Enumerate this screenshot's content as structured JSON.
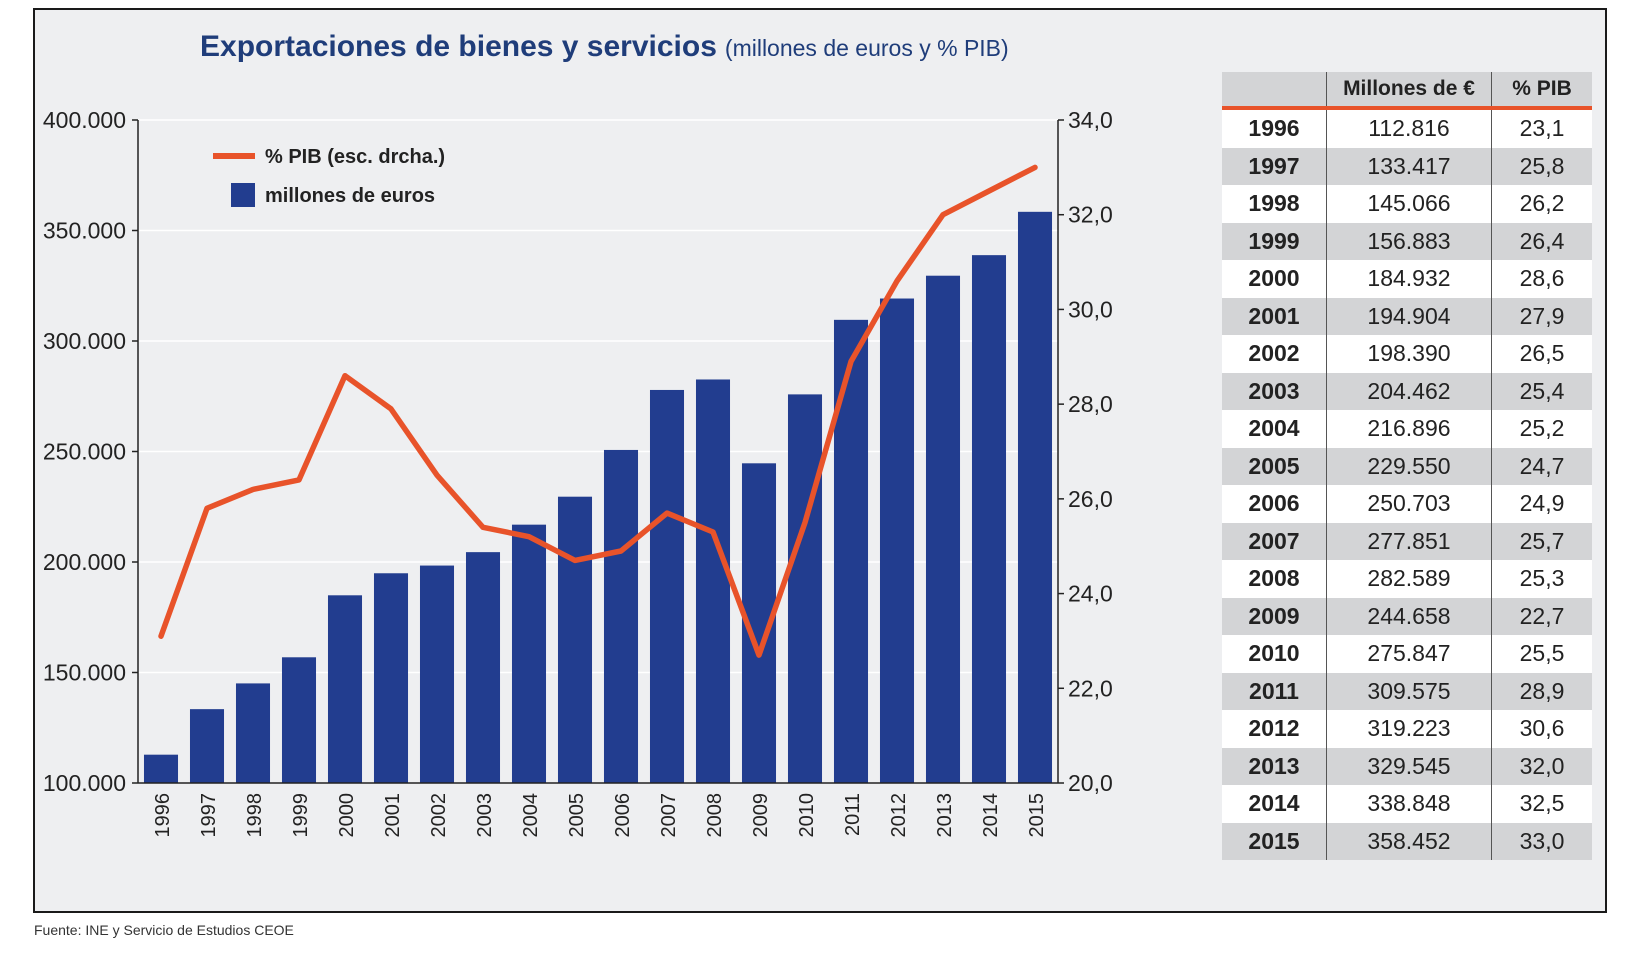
{
  "title": "Exportaciones de bienes y servicios",
  "subtitle": "(millones de euros y % PIB)",
  "footer": "Fuente: INE y Servicio de Estudios CEOE",
  "legend": {
    "line_label": "% PIB (esc. drcha.)",
    "bar_label": "millones de euros"
  },
  "colors": {
    "bar": "#223d8f",
    "line": "#e8532a",
    "title": "#1f3d7a"
  },
  "table": {
    "headers": [
      "",
      "Millones de €",
      "% PIB"
    ],
    "rows": [
      [
        "1996",
        "112.816",
        "23,1"
      ],
      [
        "1997",
        "133.417",
        "25,8"
      ],
      [
        "1998",
        "145.066",
        "26,2"
      ],
      [
        "1999",
        "156.883",
        "26,4"
      ],
      [
        "2000",
        "184.932",
        "28,6"
      ],
      [
        "2001",
        "194.904",
        "27,9"
      ],
      [
        "2002",
        "198.390",
        "26,5"
      ],
      [
        "2003",
        "204.462",
        "25,4"
      ],
      [
        "2004",
        "216.896",
        "25,2"
      ],
      [
        "2005",
        "229.550",
        "24,7"
      ],
      [
        "2006",
        "250.703",
        "24,9"
      ],
      [
        "2007",
        "277.851",
        "25,7"
      ],
      [
        "2008",
        "282.589",
        "25,3"
      ],
      [
        "2009",
        "244.658",
        "22,7"
      ],
      [
        "2010",
        "275.847",
        "25,5"
      ],
      [
        "2011",
        "309.575",
        "28,9"
      ],
      [
        "2012",
        "319.223",
        "30,6"
      ],
      [
        "2013",
        "329.545",
        "32,0"
      ],
      [
        "2014",
        "338.848",
        "32,5"
      ],
      [
        "2015",
        "358.452",
        "33,0"
      ]
    ]
  },
  "chart_data": {
    "type": "bar",
    "title": "Exportaciones de bienes y servicios",
    "categories": [
      "1996",
      "1997",
      "1998",
      "1999",
      "2000",
      "2001",
      "2002",
      "2003",
      "2004",
      "2005",
      "2006",
      "2007",
      "2008",
      "2009",
      "2010",
      "2011",
      "2012",
      "2013",
      "2014",
      "2015"
    ],
    "series": [
      {
        "name": "millones de euros",
        "type": "bar",
        "axis": "left",
        "values": [
          112816,
          133417,
          145066,
          156883,
          184932,
          194904,
          198390,
          204462,
          216896,
          229550,
          250703,
          277851,
          282589,
          244658,
          275847,
          309575,
          319223,
          329545,
          338848,
          358452
        ]
      },
      {
        "name": "% PIB (esc. drcha.)",
        "type": "line",
        "axis": "right",
        "values": [
          23.1,
          25.8,
          26.2,
          26.4,
          28.6,
          27.9,
          26.5,
          25.4,
          25.2,
          24.7,
          24.9,
          25.7,
          25.3,
          22.7,
          25.5,
          28.9,
          30.6,
          32.0,
          32.5,
          33.0
        ]
      }
    ],
    "ylim_left": [
      100000,
      400000
    ],
    "yticks_left": [
      "100.000",
      "150.000",
      "200.000",
      "250.000",
      "300.000",
      "350.000",
      "400.000"
    ],
    "ylim_right": [
      20,
      34
    ],
    "yticks_right": [
      "20,0",
      "22,0",
      "24,0",
      "26,0",
      "28,0",
      "30,0",
      "32,0",
      "34,0"
    ],
    "grid": true,
    "legend_position": "top-left"
  }
}
